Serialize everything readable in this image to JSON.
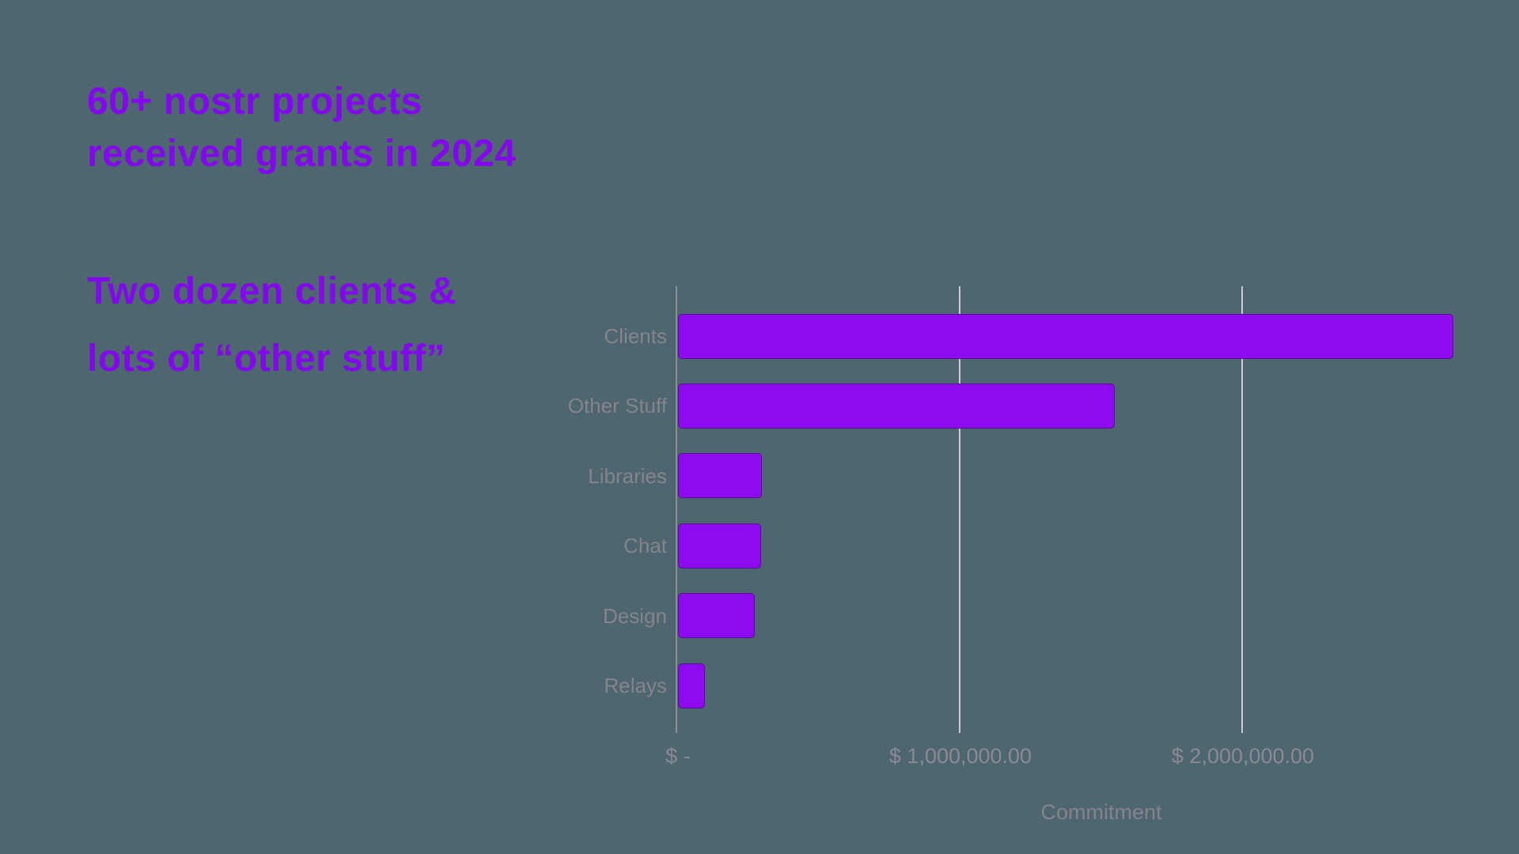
{
  "background_color": "#4d6670",
  "headline": {
    "line1": "60+ nostr projects",
    "line2": "received grants in 2024",
    "color": "#8307ec"
  },
  "subheadline": {
    "line1": "Two dozen clients &",
    "line2": "lots of “other stuff”",
    "color": "#8307ec"
  },
  "chart_data": {
    "type": "bar",
    "orientation": "horizontal",
    "title": "",
    "categories": [
      "Clients",
      "Other Stuff",
      "Libraries",
      "Chat",
      "Design",
      "Relays"
    ],
    "values": [
      2745000,
      1545000,
      298000,
      295000,
      272000,
      95000
    ],
    "x_ticks": [
      {
        "label": "$ -",
        "value": 0
      },
      {
        "label": "$ 1,000,000.00",
        "value": 1000000
      },
      {
        "label": "$ 2,000,000.00",
        "value": 2000000
      }
    ],
    "xlabel": "Commitment",
    "ylabel": "",
    "xlim": [
      0,
      2870000
    ],
    "grid": true,
    "bar_color": "#8e0bf0",
    "bar_border_color": "#3a0a6e",
    "axis_line_color": "#8f8e96",
    "gridline_color": "#cfc9d6",
    "label_color": "#85848c",
    "tick_label_color": "#8b8a94"
  }
}
